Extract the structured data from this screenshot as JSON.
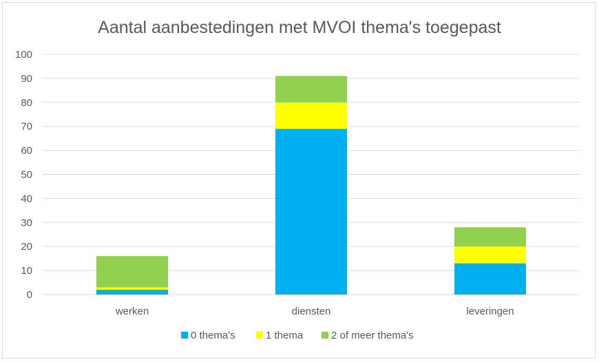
{
  "chart_data": {
    "type": "bar",
    "stacked": true,
    "title": "Aantal aanbestedingen met MVOI thema's toegepast",
    "categories": [
      "werken",
      "diensten",
      "leveringen"
    ],
    "series": [
      {
        "name": "0 thema's",
        "color": "#00B0F0",
        "values": [
          2,
          69,
          13
        ]
      },
      {
        "name": "1 thema",
        "color": "#FFFF00",
        "values": [
          1,
          11,
          7
        ]
      },
      {
        "name": "2 of meer thema's",
        "color": "#92D050",
        "values": [
          13,
          11,
          8
        ]
      }
    ],
    "ylim": [
      0,
      100
    ],
    "yticks": [
      0,
      10,
      20,
      30,
      40,
      50,
      60,
      70,
      80,
      90,
      100
    ],
    "grid": true,
    "legend_position": "bottom"
  }
}
